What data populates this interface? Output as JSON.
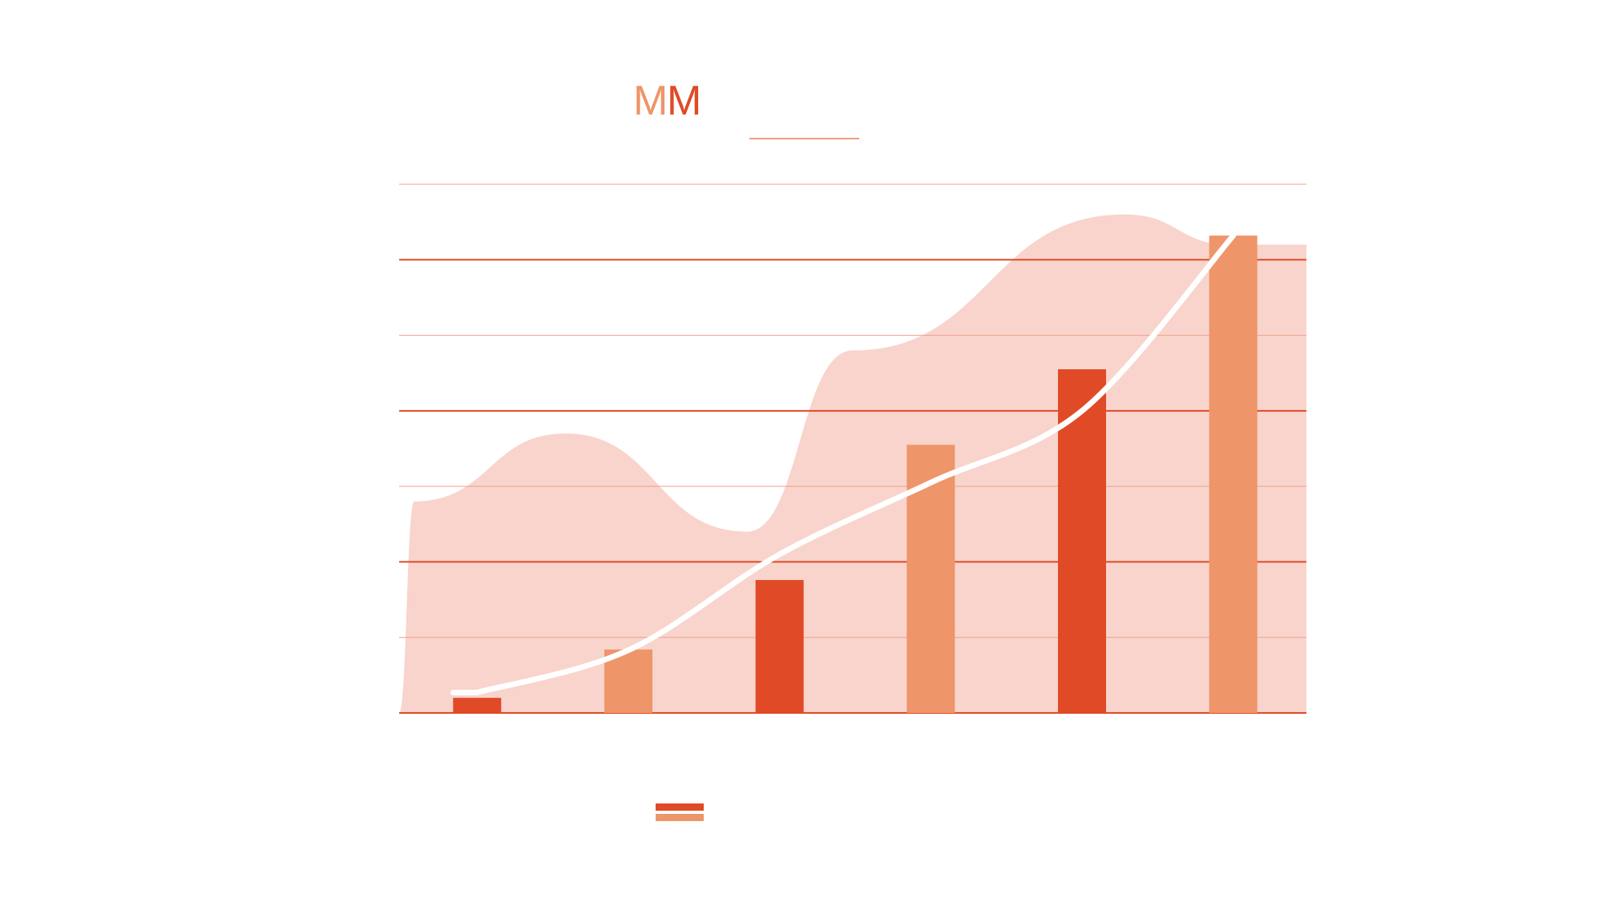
{
  "logo": {
    "text": "MM",
    "colors": [
      "#ee9569",
      "#e04a26"
    ]
  },
  "colors": {
    "background": "#ffffff",
    "accent_dark": "#e04a26",
    "accent_light": "#ee9569",
    "area_fill": "#f8d4cc",
    "trend_line": "#ffffff",
    "title_underline": "#f19a80"
  },
  "chart_data": {
    "type": "bar",
    "categories": [
      "",
      "",
      "",
      "",
      "",
      ""
    ],
    "values": [
      2,
      8.4,
      17.6,
      35.5,
      45.5,
      63.2
    ],
    "bar_colors": [
      "#e04a26",
      "#ee9569",
      "#e04a26",
      "#ee9569",
      "#e04a26",
      "#ee9569"
    ],
    "trend": [
      2.7,
      8.3,
      21,
      30.5,
      40,
      63.2
    ],
    "background_area": [
      [
        0,
        0
      ],
      [
        0.1,
        28
      ],
      [
        1.1,
        37
      ],
      [
        2.3,
        24
      ],
      [
        3.0,
        48
      ],
      [
        4.8,
        66
      ],
      [
        5.5,
        62
      ]
    ],
    "ylim": [
      0,
      70
    ],
    "gridlines_major": [
      0,
      20,
      40,
      60
    ],
    "gridlines_minor": [
      10,
      30,
      50,
      70
    ],
    "grid": true,
    "title": "",
    "xlabel": "",
    "ylabel": "",
    "legend": {
      "position": "bottom-center",
      "swatches": [
        "#e04a26",
        "#ee9569"
      ]
    }
  }
}
